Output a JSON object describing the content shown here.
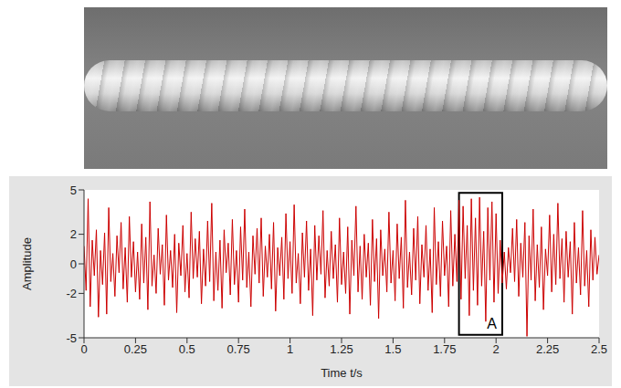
{
  "chart_data": {
    "type": "line",
    "x_label": "Time t/s",
    "y_label": "Amplitude",
    "xlim": [
      0,
      2.5
    ],
    "xticks": [
      0,
      0.25,
      0.5,
      0.75,
      1,
      1.25,
      1.5,
      1.75,
      2,
      2.25,
      2.5
    ],
    "ylim": [
      -5,
      5
    ],
    "yticks": [
      -5,
      -2,
      0,
      2,
      5
    ],
    "grid": false,
    "color": "#cc0000",
    "x": [
      0,
      0.01,
      0.02,
      0.03,
      0.04,
      0.05,
      0.06,
      0.07,
      0.08,
      0.09,
      0.1,
      0.11,
      0.12,
      0.13,
      0.14,
      0.15,
      0.16,
      0.17,
      0.18,
      0.19,
      0.2,
      0.21,
      0.22,
      0.23,
      0.24,
      0.25,
      0.26,
      0.27,
      0.28,
      0.29,
      0.3,
      0.31,
      0.32,
      0.33,
      0.34,
      0.35,
      0.36,
      0.37,
      0.38,
      0.39,
      0.4,
      0.41,
      0.42,
      0.43,
      0.44,
      0.45,
      0.46,
      0.47,
      0.48,
      0.49,
      0.5,
      0.51,
      0.52,
      0.53,
      0.54,
      0.55,
      0.56,
      0.57,
      0.58,
      0.59,
      0.6,
      0.61,
      0.62,
      0.63,
      0.64,
      0.65,
      0.66,
      0.67,
      0.68,
      0.69,
      0.7,
      0.71,
      0.72,
      0.73,
      0.74,
      0.75,
      0.76,
      0.77,
      0.78,
      0.79,
      0.8,
      0.81,
      0.82,
      0.83,
      0.84,
      0.85,
      0.86,
      0.87,
      0.88,
      0.89,
      0.9,
      0.91,
      0.92,
      0.93,
      0.94,
      0.95,
      0.96,
      0.97,
      0.98,
      0.99,
      1,
      1.01,
      1.02,
      1.03,
      1.04,
      1.05,
      1.06,
      1.07,
      1.08,
      1.09,
      1.1,
      1.11,
      1.12,
      1.13,
      1.14,
      1.15,
      1.16,
      1.17,
      1.18,
      1.19,
      1.2,
      1.21,
      1.22,
      1.23,
      1.24,
      1.25,
      1.26,
      1.27,
      1.28,
      1.29,
      1.3,
      1.31,
      1.32,
      1.33,
      1.34,
      1.35,
      1.36,
      1.37,
      1.38,
      1.39,
      1.4,
      1.41,
      1.42,
      1.43,
      1.44,
      1.45,
      1.46,
      1.47,
      1.48,
      1.49,
      1.5,
      1.51,
      1.52,
      1.53,
      1.54,
      1.55,
      1.56,
      1.57,
      1.58,
      1.59,
      1.6,
      1.61,
      1.62,
      1.63,
      1.64,
      1.65,
      1.66,
      1.67,
      1.68,
      1.69,
      1.7,
      1.71,
      1.72,
      1.73,
      1.74,
      1.75,
      1.76,
      1.77,
      1.78,
      1.79,
      1.8,
      1.81,
      1.82,
      1.83,
      1.84,
      1.85,
      1.86,
      1.87,
      1.88,
      1.89,
      1.9,
      1.91,
      1.92,
      1.93,
      1.94,
      1.95,
      1.96,
      1.97,
      1.98,
      1.99,
      2,
      2.01,
      2.02,
      2.03,
      2.04,
      2.05,
      2.06,
      2.07,
      2.08,
      2.09,
      2.1,
      2.11,
      2.12,
      2.13,
      2.14,
      2.15,
      2.16,
      2.17,
      2.18,
      2.19,
      2.2,
      2.21,
      2.22,
      2.23,
      2.24,
      2.25,
      2.26,
      2.27,
      2.28,
      2.29,
      2.3,
      2.31,
      2.32,
      2.33,
      2.34,
      2.35,
      2.36,
      2.37,
      2.38,
      2.39,
      2.4,
      2.41,
      2.42,
      2.43,
      2.44,
      2.45,
      2.46,
      2.47,
      2.48,
      2.49,
      2.5
    ],
    "values": [
      1.2,
      -1.8,
      4.4,
      -2.9,
      1.6,
      -0.8,
      2.3,
      -3.6,
      0.9,
      -1.4,
      2.1,
      -3.4,
      3.8,
      -1.2,
      0.7,
      -2.2,
      1.9,
      -0.6,
      2.8,
      -1.7,
      1.1,
      -2.6,
      3.2,
      -0.9,
      1.5,
      -1.9,
      0.8,
      -2.4,
      2.7,
      -1.3,
      1.8,
      -3.1,
      4.2,
      -1.5,
      0.6,
      -2.0,
      2.4,
      -0.7,
      1.3,
      -2.8,
      3.3,
      -1.1,
      0.9,
      -1.6,
      2.0,
      -3.3,
      1.4,
      -0.8,
      2.6,
      -1.9,
      0.7,
      -2.3,
      3.5,
      -1.0,
      1.7,
      -0.9,
      2.2,
      -2.7,
      1.0,
      -1.5,
      2.9,
      -1.2,
      4.1,
      -2.5,
      0.8,
      -1.8,
      1.6,
      -3.0,
      2.3,
      -0.6,
      1.4,
      -2.1,
      3.0,
      -1.4,
      0.9,
      -2.6,
      2.5,
      -1.1,
      3.7,
      -1.6,
      0.8,
      -2.9,
      1.9,
      -0.7,
      2.4,
      -1.3,
      3.1,
      -2.2,
      1.2,
      -0.9,
      2.0,
      -1.7,
      2.8,
      -3.2,
      1.1,
      -0.8,
      1.8,
      -2.4,
      3.4,
      -1.0,
      1.5,
      -2.0,
      4.0,
      -1.3,
      0.7,
      -2.7,
      2.1,
      -0.9,
      2.9,
      -1.8,
      1.0,
      -3.5,
      2.6,
      -1.1,
      1.9,
      -0.7,
      3.6,
      -2.3,
      0.9,
      -1.5,
      2.2,
      -1.0,
      1.3,
      -2.6,
      3.1,
      -1.4,
      0.8,
      -2.0,
      2.5,
      -3.4,
      1.6,
      -0.8,
      3.9,
      -1.9,
      1.2,
      -2.4,
      2.0,
      -0.9,
      1.4,
      -2.8,
      3.0,
      -1.2,
      1.7,
      -3.7,
      2.3,
      -0.8,
      1.0,
      -1.9,
      3.5,
      -1.3,
      0.9,
      -2.5,
      2.7,
      -1.0,
      1.8,
      -3.0,
      4.3,
      -1.6,
      0.8,
      -2.1,
      2.4,
      -1.1,
      3.2,
      -2.7,
      1.3,
      -0.9,
      2.6,
      -1.8,
      1.0,
      -3.3,
      3.8,
      -1.4,
      1.5,
      -2.2,
      2.9,
      -0.8,
      1.2,
      -2.9,
      3.6,
      -1.5,
      2.0,
      -1.2,
      4.3,
      -2.4,
      3.9,
      -1.0,
      2.6,
      -3.5,
      4.4,
      -1.8,
      3.1,
      -2.8,
      4.5,
      -1.5,
      2.2,
      -3.9,
      3.8,
      -1.1,
      4.2,
      -2.6,
      3.4,
      -2.0,
      1.6,
      -1.3,
      0.8,
      -1.7,
      1.1,
      -0.6,
      2.4,
      -1.2,
      3.0,
      -2.2,
      1.4,
      -0.9,
      2.8,
      -4.9,
      1.9,
      -1.1,
      3.7,
      -2.5,
      1.3,
      -1.6,
      2.5,
      -3.1,
      1.0,
      -0.8,
      3.3,
      -1.9,
      2.0,
      -1.4,
      4.1,
      -1.0,
      1.7,
      -2.6,
      2.2,
      -0.9,
      1.5,
      -3.4,
      2.8,
      -1.3,
      1.1,
      -2.1,
      3.6,
      -1.5,
      0.9,
      -2.9,
      2.3,
      -1.1,
      1.8,
      -0.7,
      0.6
    ],
    "annotations": [
      {
        "text": "A",
        "x": [
          1.82,
          2.03
        ],
        "y": [
          -4.8,
          4.8
        ]
      }
    ]
  }
}
